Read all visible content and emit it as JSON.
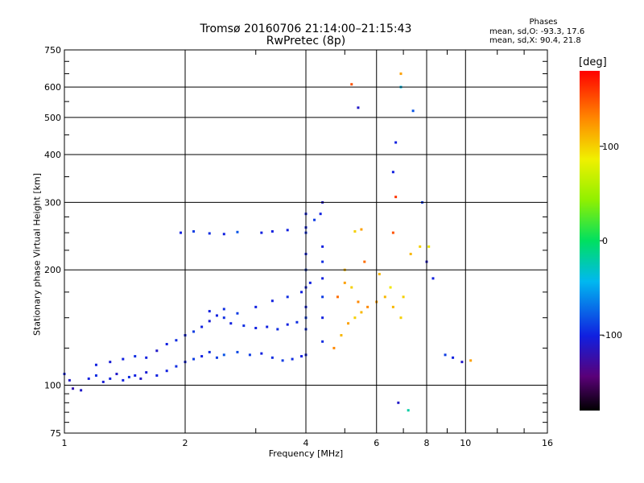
{
  "chart_data": {
    "type": "scatter",
    "title": "Tromsø 20160706 21:14:00–21:15:43",
    "subtitle": "RwPretec (8p)",
    "xlabel": "Frequency [MHz]",
    "ylabel": "Stationary phase Virtual Height [km]",
    "x_scale": "log",
    "y_scale": "log",
    "xlim": [
      1,
      16
    ],
    "ylim": [
      75,
      750
    ],
    "x_ticks": [
      1,
      2,
      4,
      6,
      8,
      10,
      16
    ],
    "y_ticks": [
      75,
      100,
      200,
      300,
      400,
      500,
      600,
      750
    ],
    "grid": true,
    "colorbar": {
      "label": "[deg]",
      "range": [
        -180,
        180
      ],
      "ticks": [
        100,
        0,
        -100
      ]
    },
    "phases_legend": {
      "heading": "Phases",
      "o_mode": "mean, sd,O: -93.3, 17.6",
      "x_mode": "mean, sd,X:  90.4, 21.8"
    },
    "series": [
      {
        "points": [
          [
            1.0,
            107,
            -100
          ],
          [
            1.03,
            103,
            -110
          ],
          [
            1.05,
            98,
            -120
          ],
          [
            1.1,
            97,
            -110
          ],
          [
            1.15,
            104,
            -100
          ],
          [
            1.2,
            106,
            -95
          ],
          [
            1.25,
            102,
            -105
          ],
          [
            1.3,
            104,
            -100
          ],
          [
            1.35,
            107,
            -110
          ],
          [
            1.4,
            103,
            -100
          ],
          [
            1.45,
            105,
            -95
          ],
          [
            1.5,
            106,
            -100
          ],
          [
            1.55,
            104,
            -110
          ],
          [
            1.6,
            108,
            -105
          ],
          [
            1.7,
            106,
            -100
          ],
          [
            1.8,
            109,
            -100
          ],
          [
            1.9,
            112,
            -95
          ],
          [
            2.0,
            115,
            -100
          ],
          [
            2.1,
            117,
            -90
          ],
          [
            2.2,
            119,
            -100
          ],
          [
            2.3,
            122,
            -95
          ],
          [
            2.4,
            118,
            -90
          ],
          [
            2.5,
            120,
            -80
          ],
          [
            2.7,
            122,
            -85
          ],
          [
            2.9,
            120,
            -90
          ],
          [
            3.1,
            121,
            -100
          ],
          [
            3.3,
            118,
            -95
          ],
          [
            3.5,
            116,
            -90
          ],
          [
            3.7,
            117,
            -95
          ],
          [
            3.9,
            119,
            -100
          ]
        ]
      },
      {
        "points": [
          [
            1.2,
            113,
            -100
          ],
          [
            1.3,
            115,
            -105
          ],
          [
            1.4,
            117,
            -100
          ],
          [
            1.5,
            119,
            -95
          ],
          [
            1.6,
            118,
            -100
          ],
          [
            1.7,
            123,
            -110
          ],
          [
            1.8,
            128,
            -100
          ],
          [
            1.9,
            131,
            -95
          ],
          [
            2.0,
            135,
            -100
          ],
          [
            2.1,
            138,
            -90
          ],
          [
            2.2,
            142,
            -100
          ],
          [
            2.3,
            147,
            -105
          ],
          [
            2.4,
            152,
            -100
          ],
          [
            2.5,
            150,
            -95
          ],
          [
            2.6,
            145,
            -100
          ],
          [
            2.8,
            143,
            -95
          ],
          [
            3.0,
            141,
            -100
          ],
          [
            3.2,
            142,
            -100
          ],
          [
            3.4,
            140,
            -95
          ],
          [
            3.6,
            144,
            -100
          ],
          [
            3.8,
            146,
            -95
          ],
          [
            4.0,
            150,
            -90
          ]
        ]
      },
      {
        "points": [
          [
            2.3,
            156,
            -100
          ],
          [
            2.5,
            158,
            -95
          ],
          [
            2.7,
            154,
            -90
          ],
          [
            3.0,
            160,
            -100
          ],
          [
            3.3,
            166,
            -100
          ],
          [
            3.6,
            170,
            -95
          ],
          [
            3.9,
            175,
            -100
          ],
          [
            4.1,
            185,
            -100
          ]
        ]
      },
      {
        "points": [
          [
            1.95,
            250,
            -100
          ],
          [
            2.1,
            252,
            -90
          ],
          [
            2.3,
            249,
            -95
          ],
          [
            2.5,
            248,
            -100
          ],
          [
            2.7,
            251,
            -80
          ],
          [
            3.1,
            250,
            -100
          ],
          [
            3.3,
            252,
            -100
          ],
          [
            3.6,
            254,
            -100
          ],
          [
            4.0,
            258,
            -100
          ],
          [
            4.2,
            270,
            -90
          ],
          [
            4.35,
            280,
            -100
          ],
          [
            4.4,
            300,
            -110
          ]
        ]
      },
      {
        "points": [
          [
            4.0,
            120,
            -100
          ],
          [
            4.0,
            140,
            -95
          ],
          [
            4.0,
            160,
            -100
          ],
          [
            4.0,
            180,
            -100
          ],
          [
            4.0,
            200,
            -90
          ],
          [
            4.0,
            220,
            -100
          ],
          [
            4.0,
            250,
            -95
          ],
          [
            4.0,
            280,
            -100
          ],
          [
            4.4,
            130,
            -95
          ],
          [
            4.4,
            150,
            -100
          ],
          [
            4.4,
            170,
            -90
          ],
          [
            4.4,
            190,
            -100
          ],
          [
            4.4,
            210,
            -95
          ],
          [
            4.4,
            230,
            -100
          ]
        ]
      },
      {
        "points": [
          [
            4.7,
            125,
            130
          ],
          [
            4.9,
            135,
            110
          ],
          [
            5.1,
            145,
            120
          ],
          [
            5.3,
            150,
            100
          ],
          [
            5.5,
            155,
            110
          ],
          [
            5.7,
            160,
            130
          ],
          [
            6.0,
            165,
            120
          ],
          [
            6.3,
            170,
            110
          ],
          [
            6.6,
            160,
            110
          ],
          [
            6.9,
            150,
            100
          ],
          [
            4.8,
            170,
            140
          ],
          [
            5.0,
            185,
            120
          ],
          [
            5.2,
            180,
            100
          ],
          [
            5.4,
            165,
            130
          ],
          [
            5.0,
            200,
            110
          ],
          [
            5.6,
            210,
            140
          ],
          [
            6.1,
            195,
            110
          ],
          [
            5.3,
            252,
            100
          ],
          [
            5.5,
            255,
            120
          ],
          [
            6.5,
            180,
            90
          ],
          [
            7.0,
            170,
            100
          ],
          [
            7.3,
            220,
            110
          ],
          [
            7.7,
            230,
            100
          ],
          [
            8.1,
            230,
            90
          ],
          [
            6.7,
            310,
            160
          ],
          [
            6.6,
            250,
            150
          ],
          [
            5.2,
            610,
            150
          ],
          [
            6.9,
            650,
            120
          ]
        ]
      },
      {
        "points": [
          [
            5.4,
            530,
            -110
          ],
          [
            6.7,
            430,
            -100
          ],
          [
            6.6,
            360,
            -100
          ],
          [
            7.4,
            520,
            -80
          ],
          [
            6.9,
            600,
            -40
          ],
          [
            7.8,
            300,
            -90
          ],
          [
            8.0,
            210,
            -110
          ],
          [
            8.3,
            190,
            -100
          ],
          [
            8.9,
            120,
            -90
          ],
          [
            9.3,
            118,
            -100
          ],
          [
            9.8,
            115,
            -110
          ],
          [
            10.3,
            116,
            120
          ],
          [
            6.8,
            90,
            -110
          ],
          [
            7.2,
            86,
            -20
          ]
        ]
      }
    ]
  }
}
